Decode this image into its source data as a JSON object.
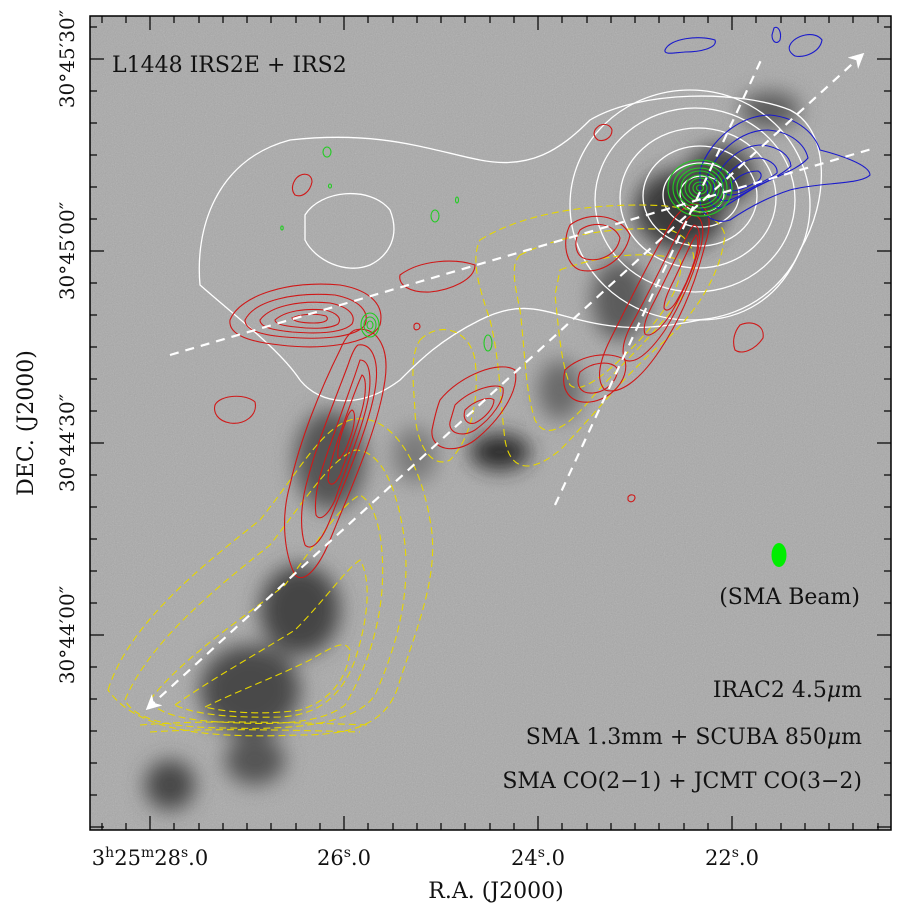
{
  "chart_data": {
    "type": "contour-map",
    "title": "L1448 IRS2E + IRS2",
    "xlabel": "R.A. (J2000)",
    "ylabel": "DEC. (J2000)",
    "x_ticks": [
      {
        "h": "3",
        "m": "25",
        "s": "28",
        "frac": "0",
        "kind": "full"
      },
      {
        "s": "26",
        "frac": "0",
        "kind": "sec"
      },
      {
        "s": "24",
        "frac": "0",
        "kind": "sec"
      },
      {
        "s": "22",
        "frac": "0",
        "kind": "sec"
      }
    ],
    "y_ticks": [
      "30°45′30″",
      "30°45′00″",
      "30°44′30″",
      "30°44′00″"
    ],
    "beam_label": "(SMA Beam)",
    "legend_lines": [
      {
        "pre": "IRAC2 4.5",
        "mu": "μ",
        "post": "m"
      },
      {
        "pre": "SMA 1.3mm + SCUBA 850",
        "mu": "μ",
        "post": "m"
      },
      {
        "pre": "SMA CO(2−1) + JCMT CO(3−2)",
        "mu": "",
        "post": ""
      }
    ],
    "layers": {
      "background": "IRAC2 4.5um greyscale",
      "white_contours": "SCUBA 850um continuum",
      "green_contours": "SMA 1.3mm continuum",
      "red_contours": "SMA CO(2-1) redshifted",
      "blue_contours": "SMA CO(2-1) blueshifted",
      "yellow_dashed_contours": "JCMT CO(3-2)",
      "arrows": "outflow axes (white dashed)"
    },
    "colors": {
      "white": "#ffffff",
      "green": "#22cc22",
      "red": "#d01818",
      "blue": "#1a1acc",
      "yellow": "#e6d600",
      "beam": "#00ee00",
      "frame": "#000000"
    }
  }
}
